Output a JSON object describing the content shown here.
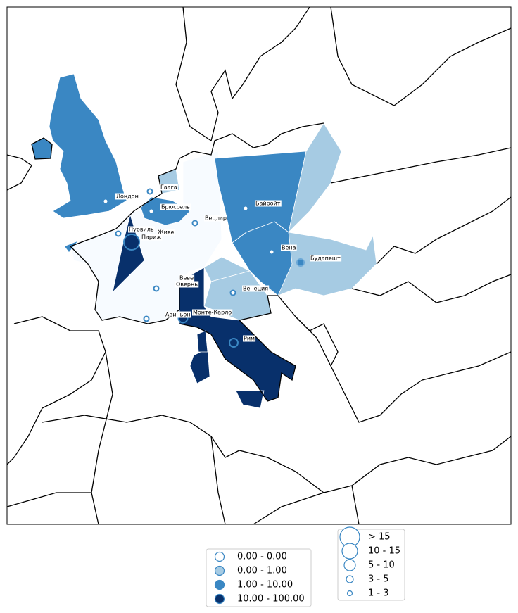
{
  "map": {
    "cities": [
      "Лондон",
      "Гаага",
      "Брюссель",
      "Вецлар",
      "Байройт",
      "Вена",
      "Будапешт",
      "Пурвиль",
      "Живе",
      "Париж",
      "Веве",
      "Овернь",
      "Венеция",
      "Авиньон",
      "Монте-Карло",
      "Рим"
    ],
    "color_legend": [
      {
        "label": "0.00 - 0.00",
        "color": "#ffffff"
      },
      {
        "label": "0.00 - 1.00",
        "color": "#a6cbe3"
      },
      {
        "label": "1.00 - 10.00",
        "color": "#3a87c3"
      },
      {
        "label": "10.00 - 100.00",
        "color": "#08306b"
      }
    ],
    "size_legend": [
      "> 15",
      "10 - 15",
      "5 - 10",
      "3 - 5",
      "1 - 3"
    ]
  }
}
